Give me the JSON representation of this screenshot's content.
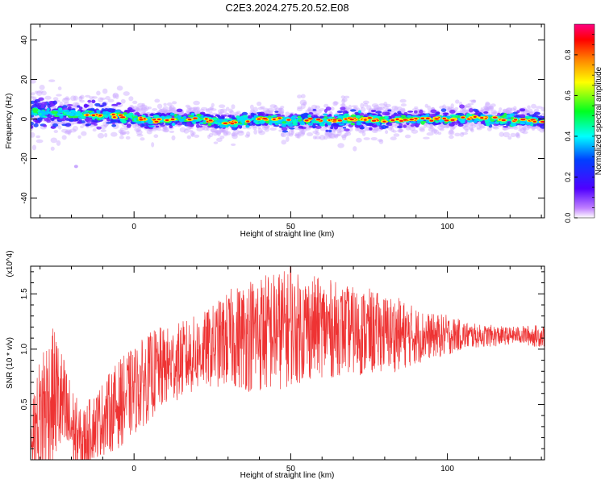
{
  "title": "C2E3.2024.275.20.52.E08",
  "chart_data": [
    {
      "type": "heatmap",
      "xlabel": "Height of straight line (km)",
      "ylabel": "Frequency (Hz)",
      "xlim": [
        -33,
        131
      ],
      "ylim": [
        -50,
        48
      ],
      "xticks": [
        0,
        50,
        100
      ],
      "yticks": [
        -40,
        -20,
        0,
        20,
        40
      ],
      "xtick_labels": [
        "0",
        "50",
        "100"
      ],
      "ytick_labels": [
        "-40",
        "-20",
        "0",
        "20",
        "40"
      ],
      "colorbar": {
        "label": "Normalized spectral amplitude",
        "range": [
          0.0,
          0.95
        ],
        "ticks": [
          0.0,
          0.2,
          0.4,
          0.6,
          0.8
        ],
        "tick_labels": [
          "0.0",
          "0.2",
          "0.4",
          "0.6",
          "0.8"
        ],
        "colormap": [
          "#ffffff",
          "#8a2be2",
          "#0000ff",
          "#00ffff",
          "#00ff00",
          "#ffff00",
          "#ff8000",
          "#ff0000",
          "#ff0080"
        ]
      },
      "ridge": {
        "x": [
          -33,
          -25,
          -15,
          -5,
          0,
          5,
          10,
          20,
          30,
          40,
          50,
          60,
          70,
          80,
          90,
          100,
          110,
          120,
          131
        ],
        "frequency": [
          4,
          3,
          2,
          1.5,
          0.5,
          -1,
          0,
          0,
          -2,
          0,
          -1,
          -1,
          0,
          -0.5,
          0,
          0,
          0.5,
          -0.5,
          -1
        ],
        "spread": [
          8,
          7,
          6,
          6,
          5,
          4,
          4,
          4,
          4,
          4,
          5,
          5,
          5,
          5,
          4,
          4,
          4,
          4,
          4
        ]
      }
    },
    {
      "type": "line",
      "xlabel": "Height of straight line (km)",
      "ylabel": "SNR (10 * v/v)",
      "y_multiplier": "(x10^4)",
      "xlim": [
        -33,
        131
      ],
      "ylim": [
        0,
        1.75
      ],
      "xticks": [
        0,
        50,
        100
      ],
      "yticks": [
        0.5,
        1.0,
        1.5
      ],
      "xtick_labels": [
        "0",
        "50",
        "100"
      ],
      "ytick_labels": [
        "0.5",
        "1.0",
        "1.5"
      ],
      "color": "#ee3333",
      "envelope": {
        "x": [
          -33,
          -29,
          -25,
          -21,
          -17,
          -13,
          -9,
          -5,
          -1,
          3,
          7,
          11,
          15,
          19,
          23,
          27,
          31,
          35,
          39,
          43,
          47,
          51,
          55,
          59,
          63,
          67,
          71,
          75,
          79,
          83,
          87,
          91,
          95,
          99,
          103,
          107,
          111,
          115,
          119,
          123,
          127,
          131
        ],
        "mean": [
          0.2,
          0.45,
          0.6,
          0.35,
          0.15,
          0.3,
          0.4,
          0.5,
          0.6,
          0.7,
          0.8,
          0.85,
          0.9,
          0.95,
          1.0,
          1.05,
          1.1,
          1.12,
          1.15,
          1.15,
          1.18,
          1.18,
          1.2,
          1.2,
          1.18,
          1.18,
          1.16,
          1.15,
          1.15,
          1.14,
          1.13,
          1.12,
          1.12,
          1.12,
          1.13,
          1.12,
          1.12,
          1.12,
          1.12,
          1.13,
          1.12,
          1.12
        ],
        "amplitude": [
          0.2,
          0.7,
          0.6,
          0.45,
          0.3,
          0.3,
          0.35,
          0.4,
          0.4,
          0.4,
          0.4,
          0.35,
          0.35,
          0.35,
          0.35,
          0.4,
          0.45,
          0.5,
          0.55,
          0.55,
          0.55,
          0.5,
          0.5,
          0.45,
          0.45,
          0.4,
          0.4,
          0.4,
          0.35,
          0.35,
          0.3,
          0.25,
          0.2,
          0.2,
          0.15,
          0.12,
          0.1,
          0.1,
          0.08,
          0.08,
          0.1,
          0.1
        ]
      },
      "peak": {
        "x": 50,
        "y": 1.75
      }
    }
  ]
}
